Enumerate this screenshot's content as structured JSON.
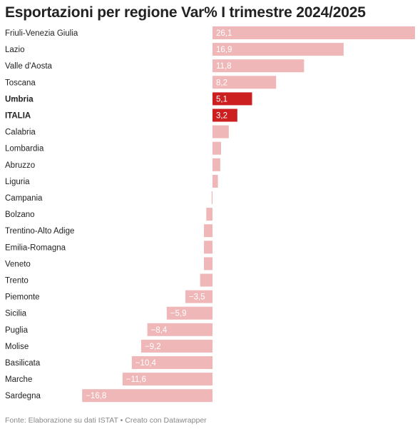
{
  "chart_data": {
    "type": "bar",
    "orientation": "horizontal",
    "title": "Esportazioni per regione Var% I trimestre 2024/2025",
    "categories": [
      "Friuli-Venezia Giulia",
      "Lazio",
      "Valle d'Aosta",
      "Toscana",
      "Umbria",
      "ITALIA",
      "Calabria",
      "Lombardia",
      "Abruzzo",
      "Liguria",
      "Campania",
      "Bolzano",
      "Trentino-Alto Adige",
      "Emilia-Romagna",
      "Veneto",
      "Trento",
      "Piemonte",
      "Sicilia",
      "Puglia",
      "Molise",
      "Basilicata",
      "Marche",
      "Sardegna"
    ],
    "values": [
      26.1,
      16.9,
      11.8,
      8.2,
      5.1,
      3.2,
      2.1,
      1.1,
      1.0,
      0.7,
      -0.1,
      -0.8,
      -1.1,
      -1.1,
      -1.1,
      -1.6,
      -3.5,
      -5.9,
      -8.4,
      -9.2,
      -10.4,
      -11.6,
      -16.8
    ],
    "value_labels": [
      "26,1",
      "16,9",
      "11,8",
      "8,2",
      "5,1",
      "3,2",
      "",
      "",
      "",
      "",
      "",
      "",
      "",
      "",
      "",
      "",
      "−3,5",
      "−5,9",
      "−8,4",
      "−9,2",
      "−10,4",
      "−11,6",
      "−16,8"
    ],
    "highlighted": [
      "Umbria",
      "ITALIA"
    ],
    "colors": {
      "default": "#efb7b7",
      "highlight": "#cc1f1f"
    },
    "xlim": [
      -16.8,
      26.1
    ],
    "footer": "Fonte: Elaborazione su dati ISTAT • Creato con Datawrapper"
  }
}
